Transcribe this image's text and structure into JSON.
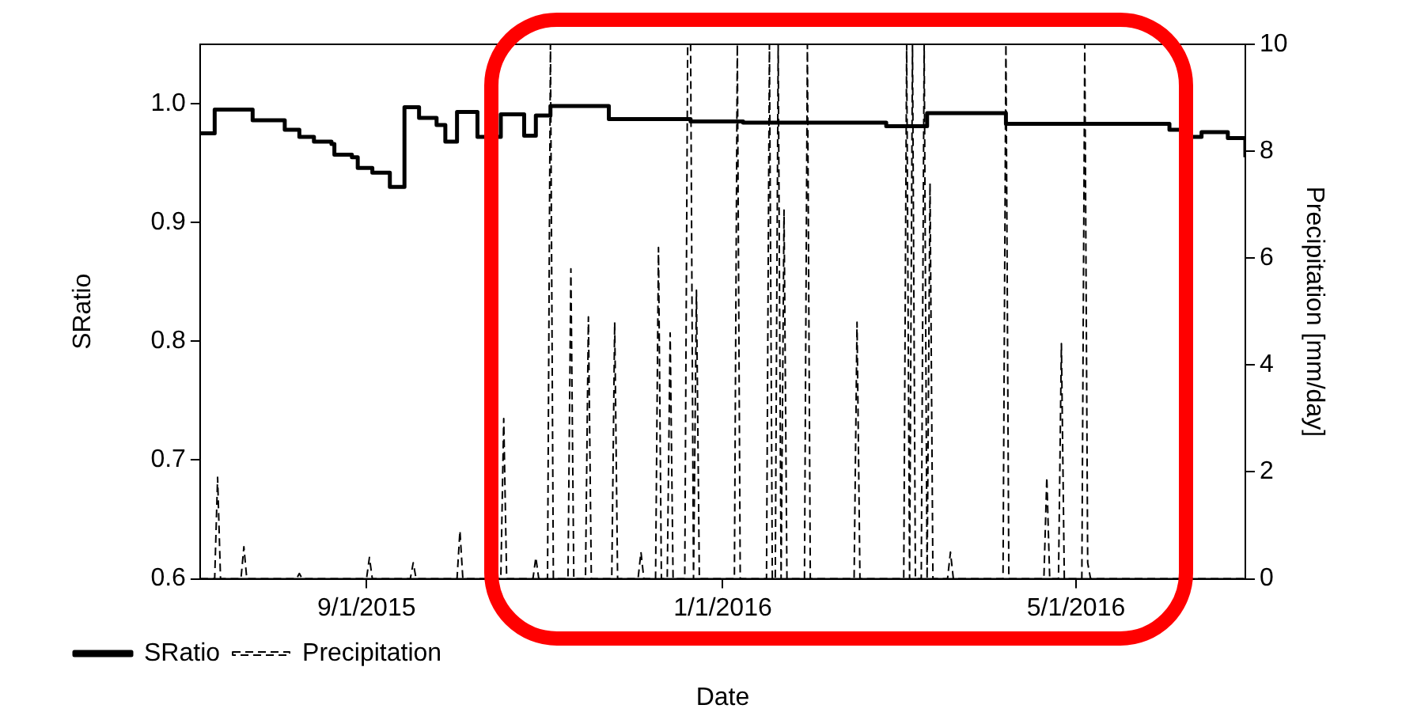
{
  "chart_data": {
    "type": "line",
    "xlabel": "Date",
    "ylabel": "SRatio",
    "y2label": "Precipitation [mm/day]",
    "xlim": [
      "2015-07-06",
      "2016-06-28"
    ],
    "xticks": [
      {
        "value": "2015-09-01",
        "label": "9/1/2015"
      },
      {
        "value": "2016-01-01",
        "label": "1/1/2016"
      },
      {
        "value": "2016-05-01",
        "label": "5/1/2016"
      }
    ],
    "ylim": [
      0.6,
      1.05
    ],
    "yticks": [
      0.6,
      0.7,
      0.8,
      0.9,
      {
        "value": 1,
        "label": "1.0"
      }
    ],
    "y2lim": [
      0,
      10
    ],
    "y2ticks": [
      0,
      2,
      4,
      6,
      8,
      10
    ],
    "legend": "bottom left",
    "marker": "none",
    "grid": false,
    "series": [
      {
        "name": "SRatio",
        "type": "step",
        "color": "#000000",
        "line_style": "solid",
        "x": [
          "2015-07-06",
          "2015-07-11",
          "2015-07-24",
          "2015-08-04",
          "2015-08-09",
          "2015-08-14",
          "2015-08-20",
          "2015-08-21",
          "2015-08-27",
          "2015-08-29",
          "2015-09-03",
          "2015-09-09",
          "2015-09-14",
          "2015-09-19",
          "2015-09-25",
          "2015-09-28",
          "2015-10-02",
          "2015-10-09",
          "2015-10-17",
          "2015-10-25",
          "2015-10-29",
          "2015-11-03",
          "2015-11-23",
          "2015-12-21",
          "2016-01-08",
          "2016-02-26",
          "2016-03-11",
          "2016-04-07",
          "2016-05-15",
          "2016-06-02",
          "2016-06-06",
          "2016-06-13",
          "2016-06-22",
          "2016-06-28"
        ],
        "values": [
          0.975,
          0.995,
          0.986,
          0.978,
          0.972,
          0.968,
          0.966,
          0.957,
          0.955,
          0.946,
          0.942,
          0.93,
          0.997,
          0.988,
          0.982,
          0.968,
          0.993,
          0.972,
          0.991,
          0.973,
          0.99,
          0.998,
          0.987,
          0.985,
          0.984,
          0.981,
          0.992,
          0.983,
          0.983,
          0.978,
          0.972,
          0.976,
          0.971,
          0.955
        ]
      },
      {
        "name": "Precipitation",
        "type": "line",
        "axis": "y2",
        "color": "#000000",
        "line_style": "dashed",
        "x": [
          "2015-07-06",
          "2015-07-11",
          "2015-07-12",
          "2015-07-13",
          "2015-07-20",
          "2015-07-21",
          "2015-07-22",
          "2015-08-08",
          "2015-08-09",
          "2015-08-10",
          "2015-09-01",
          "2015-09-02",
          "2015-09-03",
          "2015-09-16",
          "2015-09-17",
          "2015-09-18",
          "2015-10-02",
          "2015-10-03",
          "2015-10-04",
          "2015-10-17",
          "2015-10-18",
          "2015-10-19",
          "2015-10-28",
          "2015-10-29",
          "2015-10-30",
          "2015-11-02",
          "2015-11-03",
          "2015-11-04",
          "2015-11-09",
          "2015-11-10",
          "2015-11-11",
          "2015-11-15",
          "2015-11-16",
          "2015-11-17",
          "2015-11-24",
          "2015-11-25",
          "2015-11-26",
          "2015-12-03",
          "2015-12-04",
          "2015-12-05",
          "2015-12-09",
          "2015-12-10",
          "2015-12-11",
          "2015-12-13",
          "2015-12-14",
          "2015-12-15",
          "2015-12-19",
          "2015-12-20",
          "2015-12-21",
          "2015-12-22",
          "2015-12-23",
          "2015-12-24",
          "2016-01-05",
          "2016-01-06",
          "2016-01-07",
          "2016-01-16",
          "2016-01-17",
          "2016-01-18",
          "2016-01-19",
          "2016-01-20",
          "2016-01-21",
          "2016-01-22",
          "2016-01-23",
          "2016-01-29",
          "2016-01-30",
          "2016-01-31",
          "2016-02-15",
          "2016-02-16",
          "2016-02-17",
          "2016-03-03",
          "2016-03-04",
          "2016-03-05",
          "2016-03-06",
          "2016-03-07",
          "2016-03-09",
          "2016-03-10",
          "2016-03-11",
          "2016-03-12",
          "2016-03-13",
          "2016-03-18",
          "2016-03-19",
          "2016-03-20",
          "2016-04-06",
          "2016-04-07",
          "2016-04-08",
          "2016-04-20",
          "2016-04-21",
          "2016-04-22",
          "2016-04-25",
          "2016-04-26",
          "2016-04-27",
          "2016-05-03",
          "2016-05-04",
          "2016-05-05",
          "2016-05-06",
          "2016-06-28"
        ],
        "values": [
          0,
          0,
          1.9,
          0,
          0,
          0.6,
          0,
          0,
          0.1,
          0,
          0,
          0.4,
          0,
          0,
          0.3,
          0,
          0,
          0.9,
          0,
          0,
          3.0,
          0,
          0,
          0.4,
          0,
          0,
          10,
          0,
          0,
          5.8,
          0,
          0,
          4.9,
          0,
          0,
          4.8,
          0,
          0,
          0.5,
          0,
          0,
          6.2,
          0,
          0,
          4.6,
          0,
          0,
          10,
          10,
          0,
          5.4,
          0,
          0,
          10,
          0,
          0,
          10,
          0,
          0,
          10,
          0,
          6.9,
          0,
          0,
          10,
          0,
          0,
          4.8,
          0,
          0,
          10,
          0,
          10,
          0,
          0,
          10,
          0,
          7.4,
          0,
          0,
          0.5,
          0,
          0,
          10,
          0,
          0,
          1.9,
          0,
          0,
          4.4,
          0,
          0,
          10,
          0.3,
          0,
          0
        ]
      }
    ]
  }
}
